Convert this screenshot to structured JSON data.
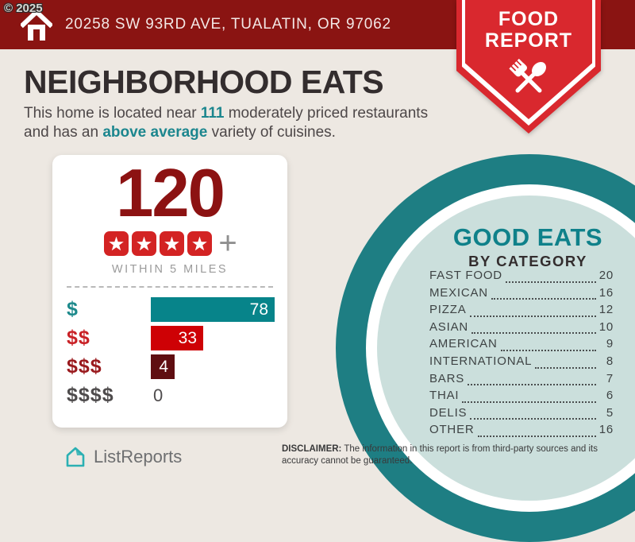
{
  "banner": {
    "address": "20258 SW 93RD AVE, TUALATIN, OR 97062"
  },
  "watermark": "© 2025",
  "ribbon": {
    "line1": "FOOD",
    "line2": "REPORT"
  },
  "headline": {
    "title": "NEIGHBORHOOD EATS",
    "subtitle_parts": [
      {
        "text": "This home is located near ",
        "em": false
      },
      {
        "text": "111",
        "em": true
      },
      {
        "text": " moderately priced restaurants and has an ",
        "em": false
      },
      {
        "text": "above average",
        "em": true
      },
      {
        "text": " variety of cuisines.",
        "em": false
      }
    ]
  },
  "summary_card": {
    "count": "120",
    "rating_stars": 4,
    "rating_suffix": "+",
    "radius_label": "WITHIN 5 MILES",
    "price_bars": [
      {
        "label": "$",
        "value": 78,
        "bar_color": "#07848A",
        "label_color": "#1E8A8C"
      },
      {
        "label": "$$",
        "value": 33,
        "bar_color": "#CE0105",
        "label_color": "#C92227"
      },
      {
        "label": "$$$",
        "value": 4,
        "bar_color": "#5F0E11",
        "label_color": "#9A1A1E"
      },
      {
        "label": "$$$$",
        "value": 0,
        "bar_color": null,
        "label_color": "#4F4C4D"
      }
    ]
  },
  "good_eats": {
    "title": "GOOD EATS",
    "subtitle": "BY CATEGORY",
    "categories": [
      {
        "label": "FAST FOOD",
        "value": 20
      },
      {
        "label": "MEXICAN",
        "value": 16
      },
      {
        "label": "PIZZA",
        "value": 12
      },
      {
        "label": "ASIAN",
        "value": 10
      },
      {
        "label": "AMERICAN",
        "value": 9
      },
      {
        "label": "INTERNATIONAL",
        "value": 8
      },
      {
        "label": "BARS",
        "value": 7
      },
      {
        "label": "THAI",
        "value": 6
      },
      {
        "label": "DELIS",
        "value": 5
      },
      {
        "label": "OTHER",
        "value": 16
      }
    ]
  },
  "footer": {
    "brand": "ListReports",
    "disclaimer_label": "DISCLAIMER:",
    "disclaimer_text": " The information in this report is from third-party sources and its accuracy cannot be guaranteed."
  },
  "colors": {
    "background": "#EDE8E2",
    "banner_red": "#8A1412",
    "ribbon_red": "#D9282E",
    "dark_red_number": "#8C1212",
    "star_red": "#D32323",
    "teal_accent": "#1C868E",
    "teal_bar": "#07848A",
    "red_bar": "#CE0105",
    "maroon_bar": "#5F0E11",
    "circle_teal": "#1E7E83",
    "circle_inner": "#CBDFDC",
    "brand_teal": "#2BB0B3"
  },
  "chart_data": [
    {
      "type": "bar",
      "title": "120 restaurants within 5 miles by price tier",
      "orientation": "horizontal",
      "categories": [
        "$",
        "$$",
        "$$$",
        "$$$$"
      ],
      "values": [
        78,
        33,
        4,
        0
      ],
      "series_colors": [
        "#07848A",
        "#CE0105",
        "#5F0E11",
        null
      ],
      "total_count": 120,
      "rating": "4 stars +",
      "radius_note": "WITHIN 5 MILES",
      "xlim": [
        0,
        78
      ],
      "grid": false,
      "data_labels": true
    },
    {
      "type": "table",
      "title": "GOOD EATS BY CATEGORY",
      "categories": [
        "FAST FOOD",
        "MEXICAN",
        "PIZZA",
        "ASIAN",
        "AMERICAN",
        "INTERNATIONAL",
        "BARS",
        "THAI",
        "DELIS",
        "OTHER"
      ],
      "values": [
        20,
        16,
        12,
        10,
        9,
        8,
        7,
        6,
        5,
        16
      ]
    }
  ]
}
